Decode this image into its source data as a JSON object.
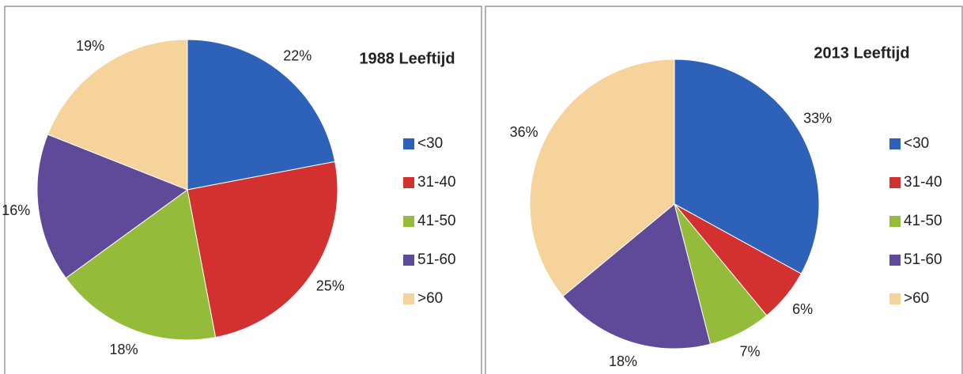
{
  "chart_data": [
    {
      "type": "pie",
      "title": "1988 Leeftijd",
      "categories": [
        "<30",
        "31-40",
        "41-50",
        "51-60",
        ">60"
      ],
      "values": [
        22,
        25,
        18,
        16,
        19
      ],
      "value_labels": [
        "22%",
        "25%",
        "18%",
        "16%",
        "19%"
      ],
      "colors": [
        "#2e62b8",
        "#d2312f",
        "#94bb3a",
        "#5e4a99",
        "#f5d39a"
      ]
    },
    {
      "type": "pie",
      "title": "2013 Leeftijd",
      "categories": [
        "<30",
        "31-40",
        "41-50",
        "51-60",
        ">60"
      ],
      "values": [
        33,
        6,
        7,
        18,
        36
      ],
      "value_labels": [
        "33%",
        "6%",
        "7%",
        "18%",
        "36%"
      ],
      "colors": [
        "#2e62b8",
        "#d2312f",
        "#94bb3a",
        "#5e4a99",
        "#f5d39a"
      ]
    }
  ]
}
